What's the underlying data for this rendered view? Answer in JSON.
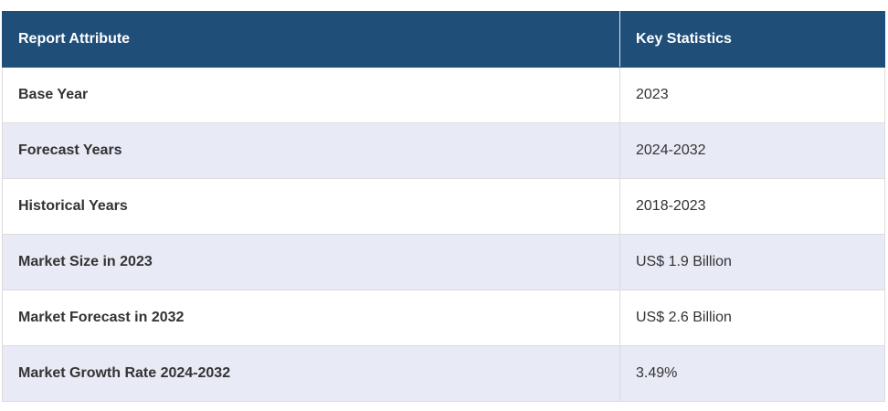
{
  "table": {
    "headers": [
      "Report Attribute",
      "Key Statistics"
    ],
    "rows": [
      [
        "Base Year",
        "2023"
      ],
      [
        "Forecast Years",
        "2024-2032"
      ],
      [
        "Historical Years",
        "2018-2023"
      ],
      [
        "Market Size in 2023",
        "US$ 1.9 Billion"
      ],
      [
        "Market Forecast in 2032",
        "US$ 2.6 Billion"
      ],
      [
        "Market Growth Rate 2024-2032",
        "3.49%"
      ]
    ]
  }
}
